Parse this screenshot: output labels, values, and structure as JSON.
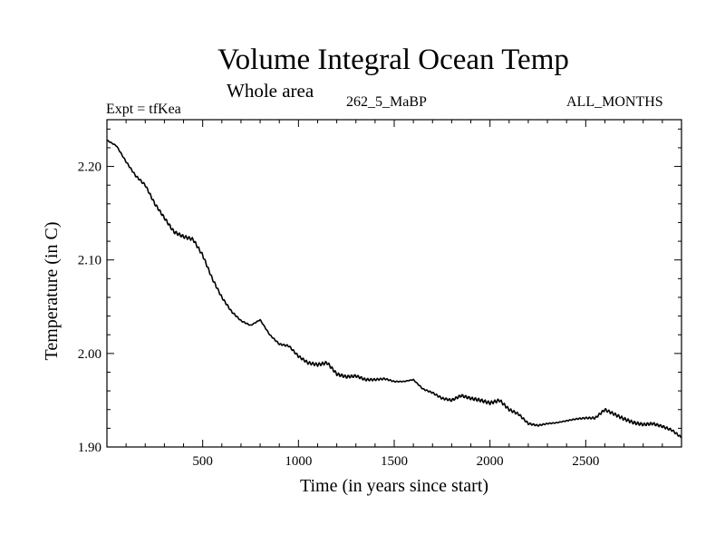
{
  "header": {
    "title": "Volume Integral Ocean Temp",
    "subtitle": "Whole area",
    "experiment": "Expt = tfKea",
    "period": "262_5_MaBP",
    "months": "ALL_MONTHS"
  },
  "chart_data": {
    "type": "line",
    "title": "Volume Integral Ocean Temp",
    "subtitle": "Whole area",
    "xlabel": "Time (in years since start)",
    "ylabel": "Temperature (in C)",
    "xlim": [
      0,
      3000
    ],
    "ylim": [
      1.9,
      2.25
    ],
    "x_ticks": [
      500,
      1000,
      1500,
      2000,
      2500
    ],
    "x_tick_labels": [
      "500",
      "1000",
      "1500",
      "2000",
      "2500"
    ],
    "y_ticks": [
      1.9,
      2.0,
      2.1,
      2.2
    ],
    "y_tick_labels": [
      "1.90",
      "2.00",
      "2.10",
      "2.20"
    ],
    "grid": false,
    "color": "#000000",
    "series": [
      {
        "x": [
          0,
          50,
          100,
          150,
          200,
          250,
          300,
          350,
          400,
          450,
          500,
          550,
          600,
          650,
          700,
          750,
          800,
          850,
          900,
          950,
          1000,
          1050,
          1100,
          1150,
          1200,
          1250,
          1300,
          1350,
          1400,
          1450,
          1500,
          1550,
          1600,
          1650,
          1700,
          1750,
          1800,
          1850,
          1900,
          1950,
          2000,
          2050,
          2100,
          2150,
          2200,
          2250,
          2300,
          2350,
          2400,
          2450,
          2500,
          2550,
          2600,
          2650,
          2700,
          2750,
          2800,
          2850,
          2900,
          2950,
          3000
        ],
        "values": [
          2.228,
          2.222,
          2.205,
          2.19,
          2.18,
          2.16,
          2.145,
          2.13,
          2.125,
          2.122,
          2.105,
          2.08,
          2.06,
          2.045,
          2.035,
          2.03,
          2.036,
          2.02,
          2.01,
          2.008,
          1.997,
          1.99,
          1.988,
          1.99,
          1.978,
          1.975,
          1.976,
          1.972,
          1.972,
          1.973,
          1.97,
          1.97,
          1.972,
          1.962,
          1.958,
          1.952,
          1.95,
          1.955,
          1.952,
          1.95,
          1.947,
          1.95,
          1.94,
          1.935,
          1.925,
          1.923,
          1.925,
          1.926,
          1.928,
          1.93,
          1.931,
          1.931,
          1.94,
          1.935,
          1.93,
          1.926,
          1.924,
          1.925,
          1.922,
          1.918,
          1.91
        ]
      }
    ]
  }
}
